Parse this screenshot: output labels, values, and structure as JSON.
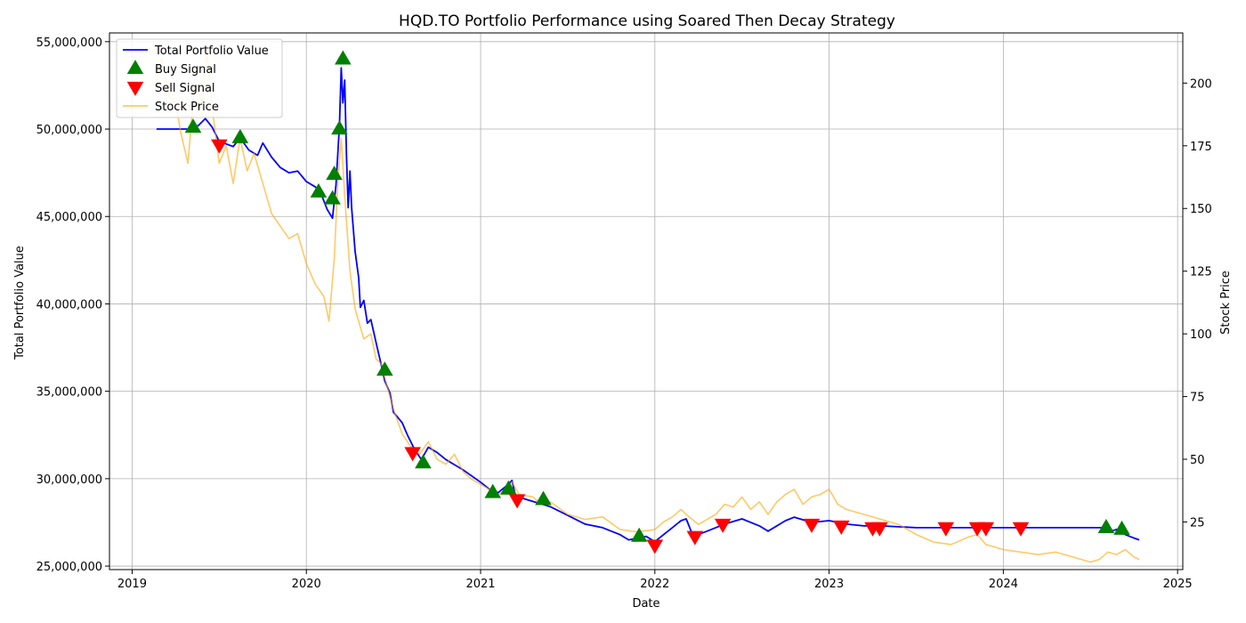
{
  "chart_data": {
    "type": "line",
    "title": "HQD.TO Portfolio Performance using Soared Then Decay Strategy",
    "xlabel": "Date",
    "ylabel_left": "Total Portfolio Value",
    "ylabel_right": "Stock Price",
    "xlim": [
      2018.87,
      2025.03
    ],
    "ylim_left": [
      24800000,
      55500000
    ],
    "ylim_right": [
      6.0,
      220.0
    ],
    "x_ticks": [
      2019,
      2020,
      2021,
      2022,
      2023,
      2024,
      2025
    ],
    "x_tick_labels": [
      "2019",
      "2020",
      "2021",
      "2022",
      "2023",
      "2024",
      "2025"
    ],
    "y_left_ticks": [
      25000000,
      30000000,
      35000000,
      40000000,
      45000000,
      50000000,
      55000000
    ],
    "y_left_tick_labels": [
      "25,000,000",
      "30,000,000",
      "35,000,000",
      "40,000,000",
      "45,000,000",
      "50,000,000",
      "55,000,000"
    ],
    "y_right_ticks": [
      25,
      50,
      75,
      100,
      125,
      150,
      175,
      200
    ],
    "y_right_tick_labels": [
      "25",
      "50",
      "75",
      "100",
      "125",
      "150",
      "175",
      "200"
    ],
    "grid": true,
    "legend_position": "top-left",
    "legend": [
      {
        "label": "Total Portfolio Value",
        "kind": "line",
        "color": "#0000ff"
      },
      {
        "label": "Buy Signal",
        "kind": "triangle-up",
        "color": "#008000"
      },
      {
        "label": "Sell Signal",
        "kind": "triangle-down",
        "color": "#ff0000"
      },
      {
        "label": "Stock Price",
        "kind": "line",
        "color": "#ffa500"
      }
    ],
    "series": [
      {
        "name": "Total Portfolio Value",
        "axis": "left",
        "color": "#0000ff",
        "points": [
          [
            2019.14,
            50000000
          ],
          [
            2019.33,
            50000000
          ],
          [
            2019.38,
            50200000
          ],
          [
            2019.42,
            50600000
          ],
          [
            2019.46,
            50100000
          ],
          [
            2019.5,
            49300000
          ],
          [
            2019.58,
            49000000
          ],
          [
            2019.62,
            49500000
          ],
          [
            2019.67,
            48800000
          ],
          [
            2019.72,
            48500000
          ],
          [
            2019.75,
            49200000
          ],
          [
            2019.8,
            48400000
          ],
          [
            2019.85,
            47800000
          ],
          [
            2019.9,
            47500000
          ],
          [
            2019.95,
            47600000
          ],
          [
            2020.0,
            47000000
          ],
          [
            2020.05,
            46700000
          ],
          [
            2020.08,
            46400000
          ],
          [
            2020.12,
            45400000
          ],
          [
            2020.15,
            44900000
          ],
          [
            2020.17,
            46800000
          ],
          [
            2020.19,
            50200000
          ],
          [
            2020.2,
            53500000
          ],
          [
            2020.21,
            51500000
          ],
          [
            2020.22,
            52800000
          ],
          [
            2020.23,
            48500000
          ],
          [
            2020.24,
            45500000
          ],
          [
            2020.25,
            47600000
          ],
          [
            2020.26,
            45500000
          ],
          [
            2020.28,
            43000000
          ],
          [
            2020.3,
            41500000
          ],
          [
            2020.31,
            39800000
          ],
          [
            2020.33,
            40200000
          ],
          [
            2020.35,
            38900000
          ],
          [
            2020.37,
            39100000
          ],
          [
            2020.4,
            37800000
          ],
          [
            2020.43,
            36500000
          ],
          [
            2020.45,
            35600000
          ],
          [
            2020.48,
            34900000
          ],
          [
            2020.5,
            33800000
          ],
          [
            2020.55,
            33200000
          ],
          [
            2020.58,
            32500000
          ],
          [
            2020.62,
            31700000
          ],
          [
            2020.66,
            31100000
          ],
          [
            2020.7,
            31800000
          ],
          [
            2020.75,
            31500000
          ],
          [
            2020.8,
            31100000
          ],
          [
            2020.85,
            30800000
          ],
          [
            2020.9,
            30500000
          ],
          [
            2021.0,
            29800000
          ],
          [
            2021.05,
            29400000
          ],
          [
            2021.1,
            29200000
          ],
          [
            2021.15,
            29600000
          ],
          [
            2021.18,
            29900000
          ],
          [
            2021.2,
            29000000
          ],
          [
            2021.3,
            28700000
          ],
          [
            2021.4,
            28400000
          ],
          [
            2021.5,
            27900000
          ],
          [
            2021.6,
            27400000
          ],
          [
            2021.7,
            27200000
          ],
          [
            2021.75,
            27000000
          ],
          [
            2021.8,
            26800000
          ],
          [
            2021.85,
            26500000
          ],
          [
            2021.9,
            26600000
          ],
          [
            2021.95,
            26700000
          ],
          [
            2022.0,
            26400000
          ],
          [
            2022.05,
            26800000
          ],
          [
            2022.1,
            27200000
          ],
          [
            2022.15,
            27600000
          ],
          [
            2022.18,
            27700000
          ],
          [
            2022.22,
            26700000
          ],
          [
            2022.3,
            27000000
          ],
          [
            2022.4,
            27400000
          ],
          [
            2022.5,
            27700000
          ],
          [
            2022.6,
            27300000
          ],
          [
            2022.65,
            27000000
          ],
          [
            2022.75,
            27600000
          ],
          [
            2022.8,
            27800000
          ],
          [
            2022.9,
            27500000
          ],
          [
            2023.0,
            27600000
          ],
          [
            2023.1,
            27400000
          ],
          [
            2023.2,
            27300000
          ],
          [
            2023.3,
            27300000
          ],
          [
            2023.5,
            27200000
          ],
          [
            2023.8,
            27200000
          ],
          [
            2024.0,
            27200000
          ],
          [
            2024.3,
            27200000
          ],
          [
            2024.58,
            27200000
          ],
          [
            2024.62,
            27000000
          ],
          [
            2024.65,
            27100000
          ],
          [
            2024.7,
            26800000
          ],
          [
            2024.75,
            26600000
          ],
          [
            2024.78,
            26500000
          ]
        ]
      },
      {
        "name": "Stock Price",
        "axis": "right",
        "color": "#ffa500",
        "points": [
          [
            2019.13,
            197
          ],
          [
            2019.17,
            210
          ],
          [
            2019.21,
            195
          ],
          [
            2019.25,
            192
          ],
          [
            2019.28,
            180
          ],
          [
            2019.32,
            168
          ],
          [
            2019.36,
            200
          ],
          [
            2019.4,
            192
          ],
          [
            2019.43,
            212
          ],
          [
            2019.46,
            190
          ],
          [
            2019.5,
            168
          ],
          [
            2019.54,
            175
          ],
          [
            2019.58,
            160
          ],
          [
            2019.62,
            178
          ],
          [
            2019.66,
            165
          ],
          [
            2019.7,
            172
          ],
          [
            2019.75,
            160
          ],
          [
            2019.8,
            148
          ],
          [
            2019.85,
            143
          ],
          [
            2019.9,
            138
          ],
          [
            2019.95,
            140
          ],
          [
            2020.0,
            128
          ],
          [
            2020.05,
            120
          ],
          [
            2020.1,
            115
          ],
          [
            2020.13,
            105
          ],
          [
            2020.16,
            130
          ],
          [
            2020.18,
            160
          ],
          [
            2020.2,
            178
          ],
          [
            2020.22,
            155
          ],
          [
            2020.25,
            125
          ],
          [
            2020.28,
            110
          ],
          [
            2020.3,
            105
          ],
          [
            2020.33,
            98
          ],
          [
            2020.37,
            100
          ],
          [
            2020.4,
            90
          ],
          [
            2020.43,
            88
          ],
          [
            2020.46,
            80
          ],
          [
            2020.5,
            70
          ],
          [
            2020.55,
            60
          ],
          [
            2020.6,
            55
          ],
          [
            2020.65,
            52
          ],
          [
            2020.7,
            57
          ],
          [
            2020.75,
            50
          ],
          [
            2020.8,
            48
          ],
          [
            2020.85,
            52
          ],
          [
            2020.9,
            45
          ],
          [
            2020.95,
            42
          ],
          [
            2021.0,
            40
          ],
          [
            2021.1,
            36
          ],
          [
            2021.15,
            38
          ],
          [
            2021.18,
            41
          ],
          [
            2021.22,
            36
          ],
          [
            2021.3,
            35
          ],
          [
            2021.35,
            32
          ],
          [
            2021.4,
            33
          ],
          [
            2021.5,
            28
          ],
          [
            2021.6,
            26
          ],
          [
            2021.7,
            27
          ],
          [
            2021.8,
            22
          ],
          [
            2021.9,
            21
          ],
          [
            2022.0,
            22
          ],
          [
            2022.05,
            25
          ],
          [
            2022.1,
            27
          ],
          [
            2022.15,
            30
          ],
          [
            2022.18,
            28
          ],
          [
            2022.25,
            24
          ],
          [
            2022.3,
            26
          ],
          [
            2022.35,
            28
          ],
          [
            2022.4,
            32
          ],
          [
            2022.45,
            31
          ],
          [
            2022.5,
            35
          ],
          [
            2022.55,
            30
          ],
          [
            2022.6,
            33
          ],
          [
            2022.65,
            28
          ],
          [
            2022.7,
            33
          ],
          [
            2022.75,
            36
          ],
          [
            2022.8,
            38
          ],
          [
            2022.85,
            32
          ],
          [
            2022.9,
            35
          ],
          [
            2022.95,
            36
          ],
          [
            2023.0,
            38
          ],
          [
            2023.05,
            32
          ],
          [
            2023.1,
            30
          ],
          [
            2023.2,
            28
          ],
          [
            2023.3,
            26
          ],
          [
            2023.4,
            24
          ],
          [
            2023.5,
            20
          ],
          [
            2023.6,
            17
          ],
          [
            2023.7,
            16
          ],
          [
            2023.8,
            19
          ],
          [
            2023.85,
            20
          ],
          [
            2023.9,
            16
          ],
          [
            2024.0,
            14
          ],
          [
            2024.1,
            13
          ],
          [
            2024.2,
            12
          ],
          [
            2024.3,
            13
          ],
          [
            2024.4,
            11
          ],
          [
            2024.5,
            9
          ],
          [
            2024.55,
            10
          ],
          [
            2024.6,
            13
          ],
          [
            2024.65,
            12
          ],
          [
            2024.7,
            14
          ],
          [
            2024.75,
            11
          ],
          [
            2024.78,
            10
          ]
        ]
      }
    ],
    "buy_signals": [
      {
        "x": 2019.35,
        "y": 50100000
      },
      {
        "x": 2019.62,
        "y": 49500000
      },
      {
        "x": 2020.07,
        "y": 46400000
      },
      {
        "x": 2020.15,
        "y": 46000000
      },
      {
        "x": 2020.16,
        "y": 47400000
      },
      {
        "x": 2020.19,
        "y": 50000000
      },
      {
        "x": 2020.21,
        "y": 54000000
      },
      {
        "x": 2020.45,
        "y": 36200000
      },
      {
        "x": 2020.67,
        "y": 30900000
      },
      {
        "x": 2021.07,
        "y": 29200000
      },
      {
        "x": 2021.16,
        "y": 29400000
      },
      {
        "x": 2021.36,
        "y": 28800000
      },
      {
        "x": 2021.91,
        "y": 26700000
      },
      {
        "x": 2024.59,
        "y": 27200000
      },
      {
        "x": 2024.68,
        "y": 27100000
      }
    ],
    "sell_signals": [
      {
        "x": 2019.5,
        "y": 49100000
      },
      {
        "x": 2020.61,
        "y": 31500000
      },
      {
        "x": 2021.21,
        "y": 28800000
      },
      {
        "x": 2022.0,
        "y": 26200000
      },
      {
        "x": 2022.23,
        "y": 26700000
      },
      {
        "x": 2022.39,
        "y": 27400000
      },
      {
        "x": 2022.9,
        "y": 27400000
      },
      {
        "x": 2023.07,
        "y": 27300000
      },
      {
        "x": 2023.25,
        "y": 27200000
      },
      {
        "x": 2023.29,
        "y": 27200000
      },
      {
        "x": 2023.67,
        "y": 27200000
      },
      {
        "x": 2023.85,
        "y": 27200000
      },
      {
        "x": 2023.9,
        "y": 27200000
      },
      {
        "x": 2024.1,
        "y": 27200000
      }
    ]
  }
}
